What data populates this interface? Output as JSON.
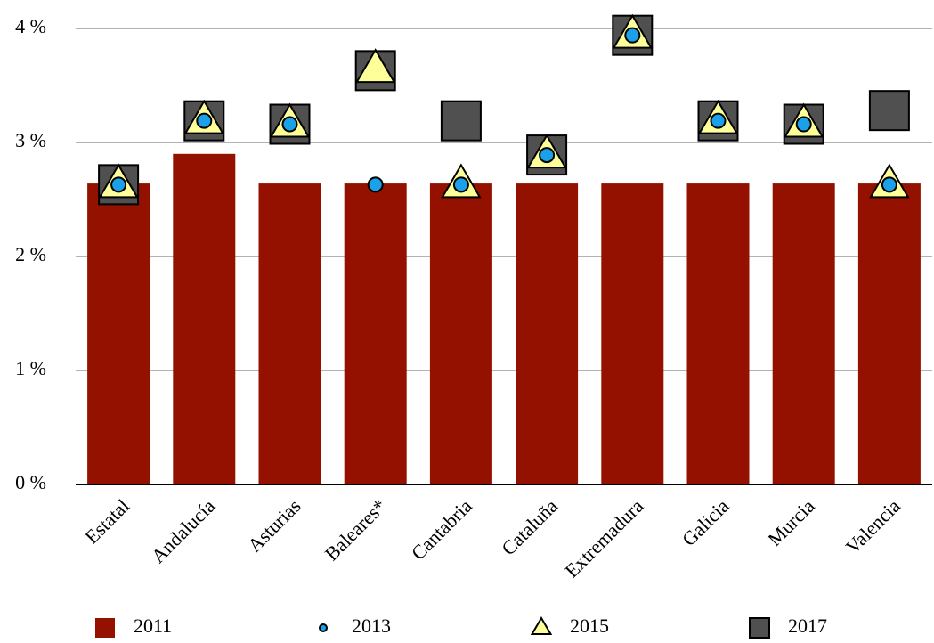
{
  "chart_data": {
    "type": "bar-marker",
    "categories": [
      "Estatal",
      "Andalucía",
      "Asturias",
      "Baleares*",
      "Cantabria",
      "Cataluña",
      "Extremadura",
      "Galicia",
      "Murcia",
      "Valencia"
    ],
    "series": [
      {
        "name": "2011",
        "marker": "bar",
        "color": "#941100",
        "values": [
          2.64,
          2.9,
          2.64,
          2.64,
          2.64,
          2.64,
          2.64,
          2.64,
          2.64,
          2.64
        ]
      },
      {
        "name": "2017",
        "marker": "square",
        "color": "#505050",
        "values": [
          2.63,
          3.19,
          3.16,
          3.63,
          3.19,
          2.89,
          3.94,
          3.19,
          3.16,
          3.28
        ]
      },
      {
        "name": "2015",
        "marker": "triangle",
        "color": "#ffff99",
        "values": [
          2.63,
          3.19,
          3.16,
          3.64,
          2.63,
          2.89,
          3.94,
          3.19,
          3.16,
          2.63
        ]
      },
      {
        "name": "2013",
        "marker": "circle",
        "color": "#1aa1ea",
        "values": [
          2.63,
          3.19,
          3.16,
          2.63,
          2.63,
          2.89,
          3.94,
          3.19,
          3.16,
          2.63
        ]
      }
    ],
    "legend_order": [
      0,
      3,
      2,
      1
    ],
    "ylim": [
      0,
      4
    ],
    "yticks": [
      {
        "value": 0,
        "label": "0 %"
      },
      {
        "value": 1,
        "label": "1 %"
      },
      {
        "value": 2,
        "label": "2 %"
      },
      {
        "value": 3,
        "label": "3 %"
      },
      {
        "value": 4,
        "label": "4 %"
      }
    ],
    "grid": true
  }
}
